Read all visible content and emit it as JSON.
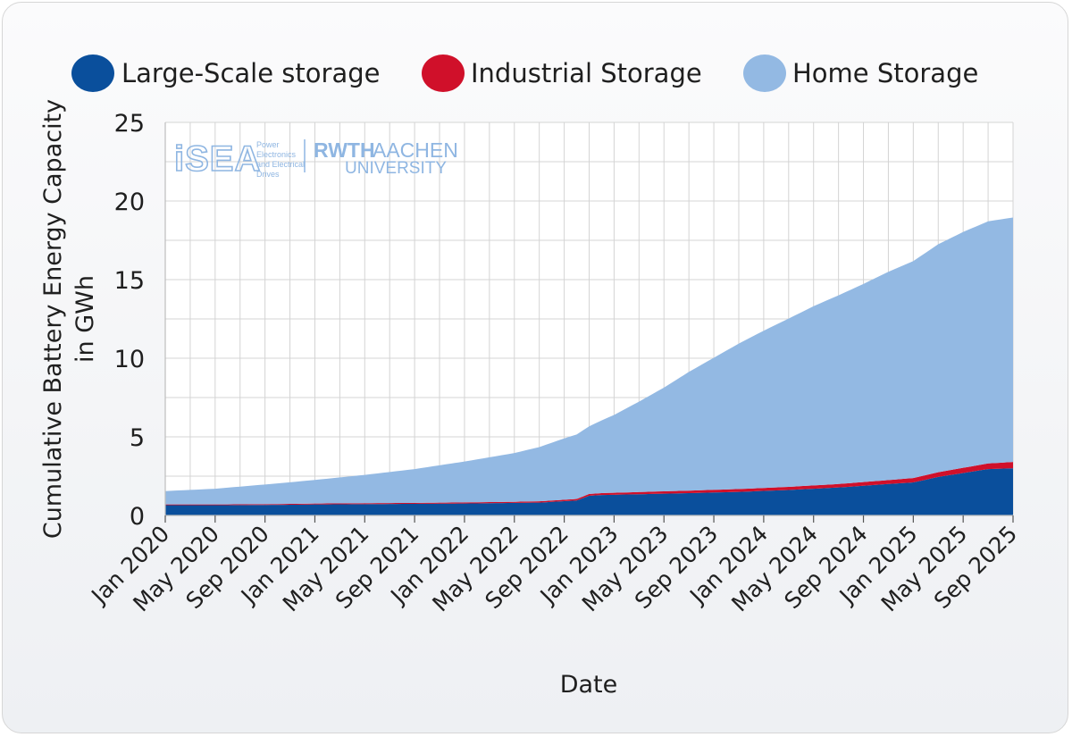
{
  "chart_data": {
    "type": "area",
    "stacked": true,
    "title": "",
    "xlabel": "Date",
    "ylabel_line1": "Cumulative Battery Energy Capacity",
    "ylabel_line2": "in GWh",
    "ylim": [
      0,
      25
    ],
    "y_ticks": [
      "0",
      "5",
      "10",
      "15",
      "20",
      "25"
    ],
    "x_tick_labels": [
      "Jan 2020",
      "May 2020",
      "Sep 2020",
      "Jan 2021",
      "May 2021",
      "Sep 2021",
      "Jan 2022",
      "May 2022",
      "Sep 2022",
      "Jan 2023",
      "May 2023",
      "Sep 2023",
      "Jan 2024",
      "May 2024",
      "Sep 2024",
      "Jan 2025",
      "May 2025",
      "Sep 2025"
    ],
    "x_range_months": [
      0,
      68
    ],
    "grid": true,
    "legend_position": "top",
    "series": [
      {
        "name": "Large-Scale storage",
        "color": "#0a4f9c",
        "x": [
          0,
          4,
          8,
          10,
          12,
          16,
          20,
          24,
          28,
          30,
          33,
          34,
          35,
          38,
          42,
          46,
          50,
          54,
          58,
          60,
          62,
          64,
          66,
          68
        ],
        "values": [
          0.65,
          0.65,
          0.67,
          0.68,
          0.7,
          0.72,
          0.74,
          0.76,
          0.8,
          0.82,
          0.95,
          1.25,
          1.3,
          1.35,
          1.42,
          1.5,
          1.62,
          1.78,
          2.0,
          2.1,
          2.45,
          2.7,
          2.95,
          3.0
        ]
      },
      {
        "name": "Industrial Storage",
        "color": "#d0102a",
        "x": [
          0,
          4,
          8,
          12,
          16,
          20,
          24,
          28,
          30,
          33,
          34,
          35,
          38,
          42,
          46,
          50,
          54,
          58,
          60,
          62,
          64,
          66,
          68
        ],
        "values": [
          0.05,
          0.05,
          0.05,
          0.06,
          0.06,
          0.06,
          0.07,
          0.07,
          0.08,
          0.1,
          0.12,
          0.12,
          0.14,
          0.16,
          0.18,
          0.2,
          0.22,
          0.25,
          0.28,
          0.3,
          0.33,
          0.36,
          0.4
        ]
      },
      {
        "name": "Home Storage",
        "color": "#93b9e3",
        "x": [
          0,
          4,
          8,
          12,
          16,
          20,
          24,
          28,
          30,
          32,
          34,
          36,
          38,
          40,
          42,
          44,
          46,
          48,
          50,
          52,
          54,
          56,
          58,
          60,
          62,
          64,
          66,
          68
        ],
        "values": [
          0.85,
          1.0,
          1.25,
          1.5,
          1.8,
          2.15,
          2.6,
          3.1,
          3.45,
          3.9,
          4.3,
          4.95,
          5.75,
          6.6,
          7.55,
          8.4,
          9.25,
          10.0,
          10.7,
          11.4,
          12.0,
          12.6,
          13.25,
          13.8,
          14.5,
          15.0,
          15.4,
          15.55
        ]
      }
    ]
  },
  "logo": {
    "isea_text": "iSEA",
    "isea_sub": [
      "Power",
      "Electronics",
      "and Electrical",
      "Drives"
    ],
    "rwth_text": "RWTH",
    "aachen_text": "AACHEN",
    "university_text": "UNIVERSITY"
  }
}
